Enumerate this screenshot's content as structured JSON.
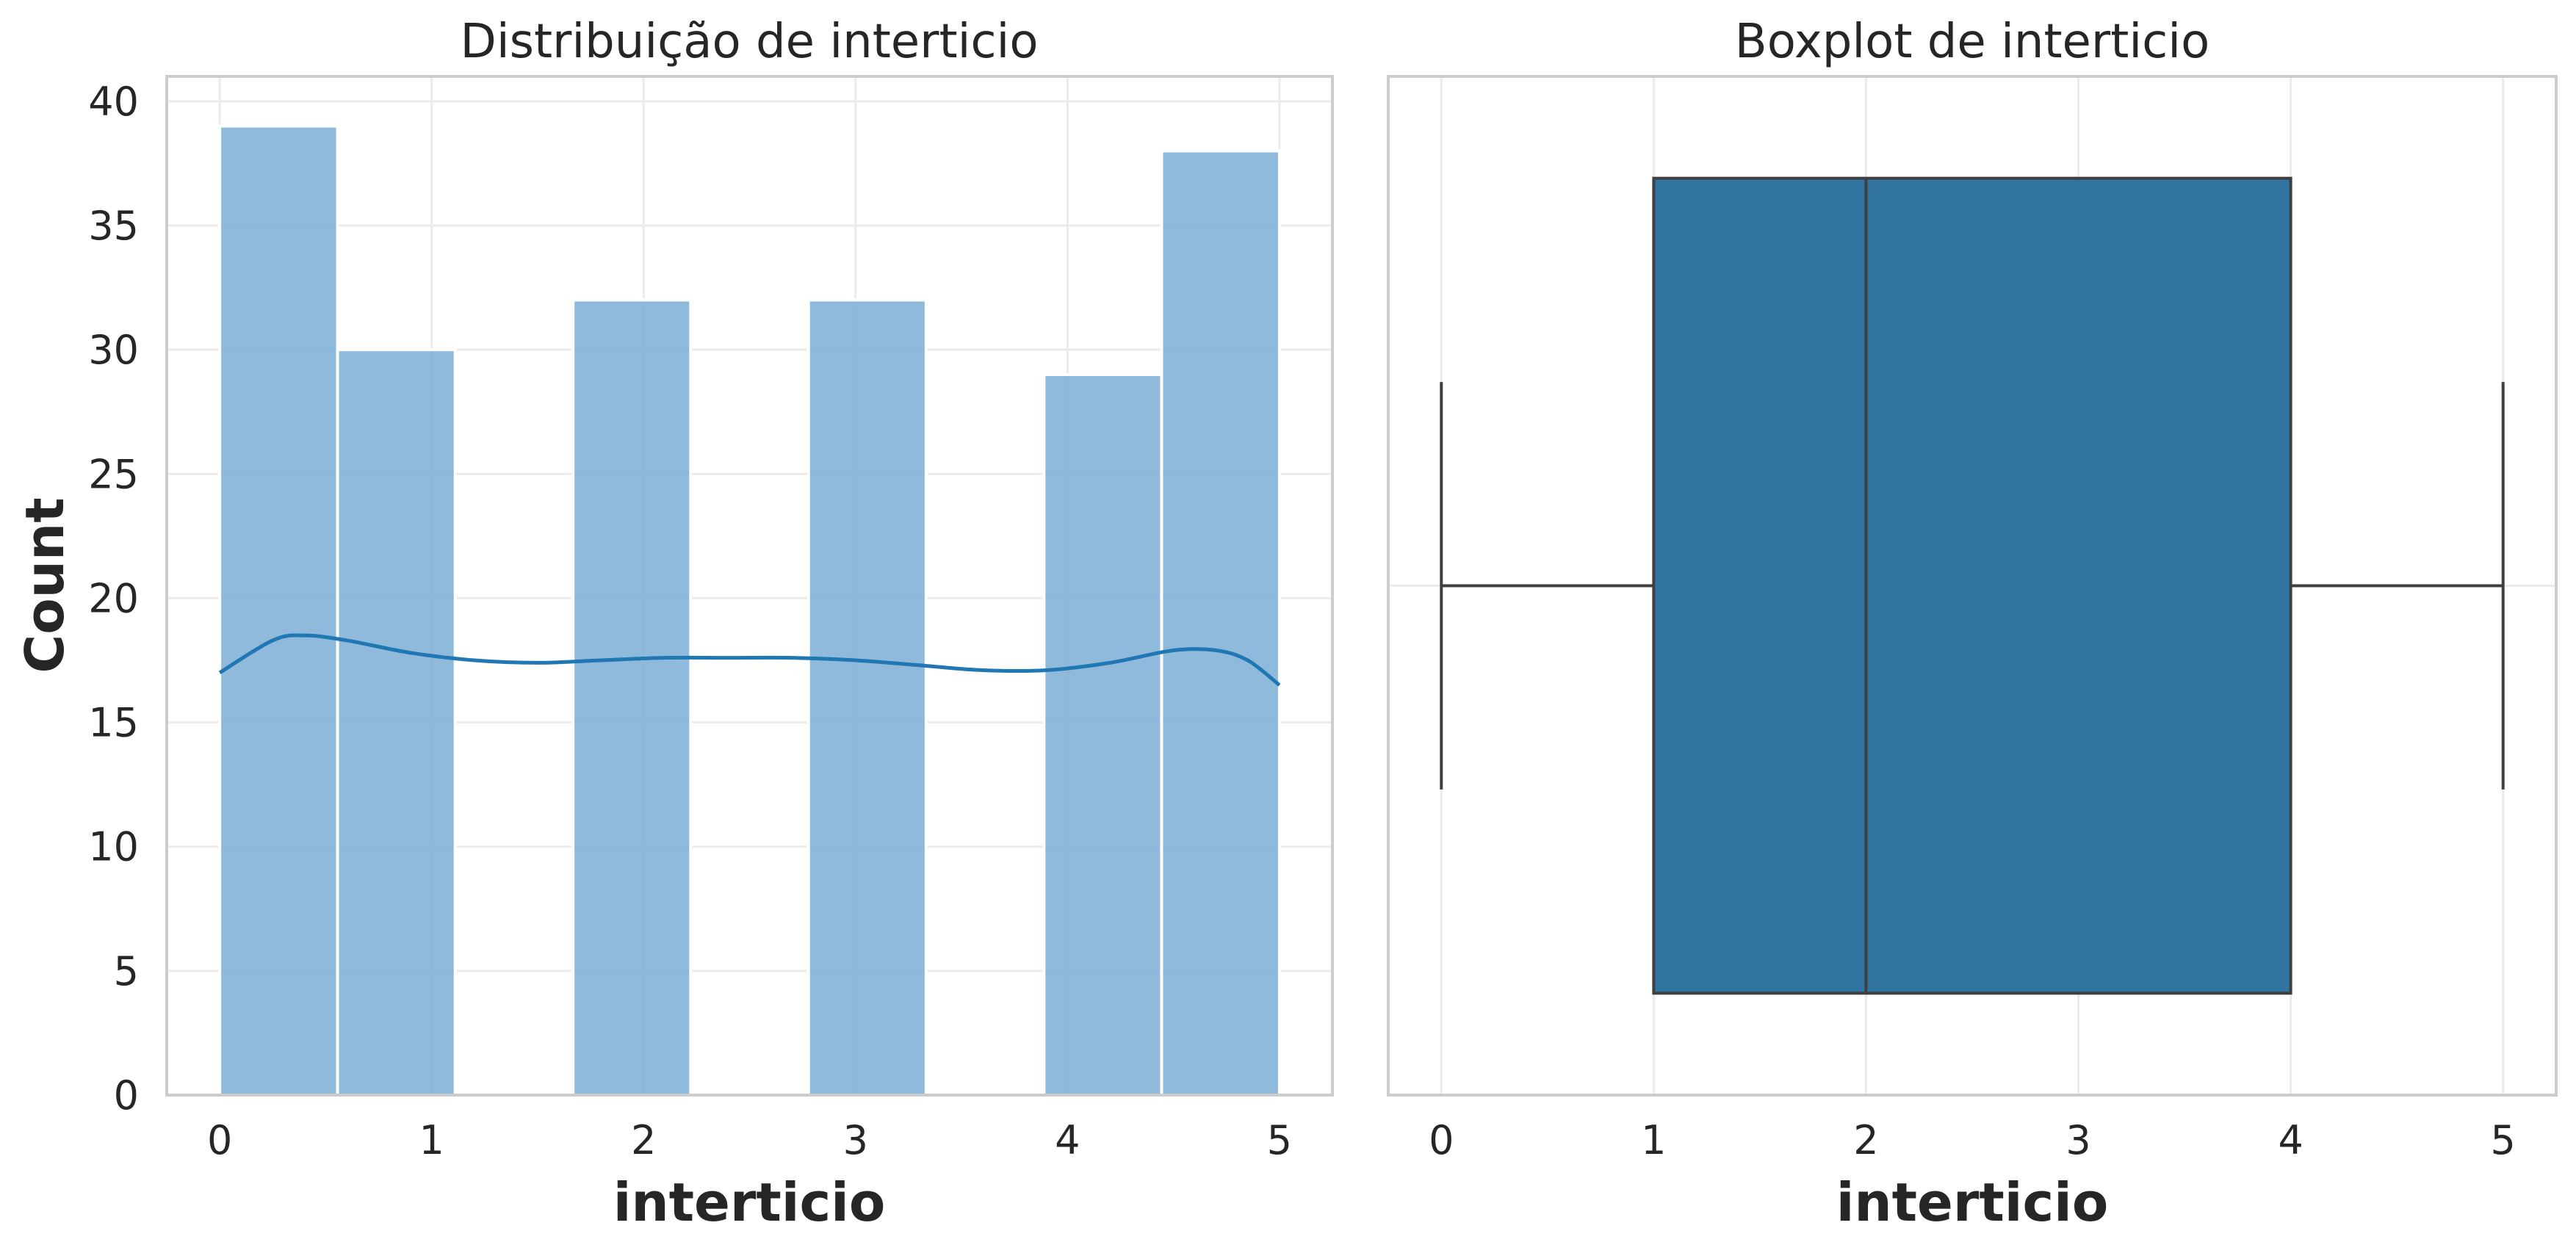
{
  "chart_data": [
    {
      "type": "histogram",
      "title": "Distribuição de interticio",
      "xlabel": "interticio",
      "ylabel": "Count",
      "xlim": [
        -0.25,
        5.25
      ],
      "ylim": [
        0,
        41
      ],
      "xticks": [
        "0",
        "1",
        "2",
        "3",
        "4",
        "5"
      ],
      "yticks": [
        "0",
        "5",
        "10",
        "15",
        "20",
        "25",
        "30",
        "35",
        "40"
      ],
      "grid": true,
      "bins": [
        {
          "x0": 0.0,
          "x1": 0.556,
          "count": 39
        },
        {
          "x0": 0.556,
          "x1": 1.111,
          "count": 30
        },
        {
          "x0": 1.111,
          "x1": 1.667,
          "count": 0
        },
        {
          "x0": 1.667,
          "x1": 2.222,
          "count": 32
        },
        {
          "x0": 2.222,
          "x1": 2.778,
          "count": 0
        },
        {
          "x0": 2.778,
          "x1": 3.333,
          "count": 32
        },
        {
          "x0": 3.333,
          "x1": 3.889,
          "count": 0
        },
        {
          "x0": 3.889,
          "x1": 4.444,
          "count": 29
        },
        {
          "x0": 4.444,
          "x1": 5.0,
          "count": 38
        }
      ],
      "kde": {
        "x": [
          0,
          0.25,
          0.4,
          0.6,
          0.9,
          1.2,
          1.5,
          1.8,
          2.1,
          2.4,
          2.7,
          3.0,
          3.3,
          3.6,
          3.9,
          4.2,
          4.5,
          4.7,
          4.85,
          5.0
        ],
        "y": [
          17.0,
          18.3,
          18.5,
          18.3,
          17.8,
          17.5,
          17.4,
          17.5,
          17.6,
          17.6,
          17.6,
          17.5,
          17.3,
          17.1,
          17.1,
          17.4,
          17.9,
          17.9,
          17.5,
          16.5
        ]
      },
      "colors": {
        "bar": "#7fb0d6",
        "kde": "#1f77b4"
      }
    },
    {
      "type": "boxplot",
      "title": "Boxplot de interticio",
      "xlabel": "interticio",
      "xlim": [
        -0.25,
        5.25
      ],
      "xticks": [
        "0",
        "1",
        "2",
        "3",
        "4",
        "5"
      ],
      "grid": true,
      "box": {
        "whislo": 0,
        "q1": 1,
        "median": 2,
        "q3": 4,
        "whishi": 5
      },
      "colors": {
        "box": "#3274a1",
        "line": "#3f3f3f"
      }
    }
  ]
}
